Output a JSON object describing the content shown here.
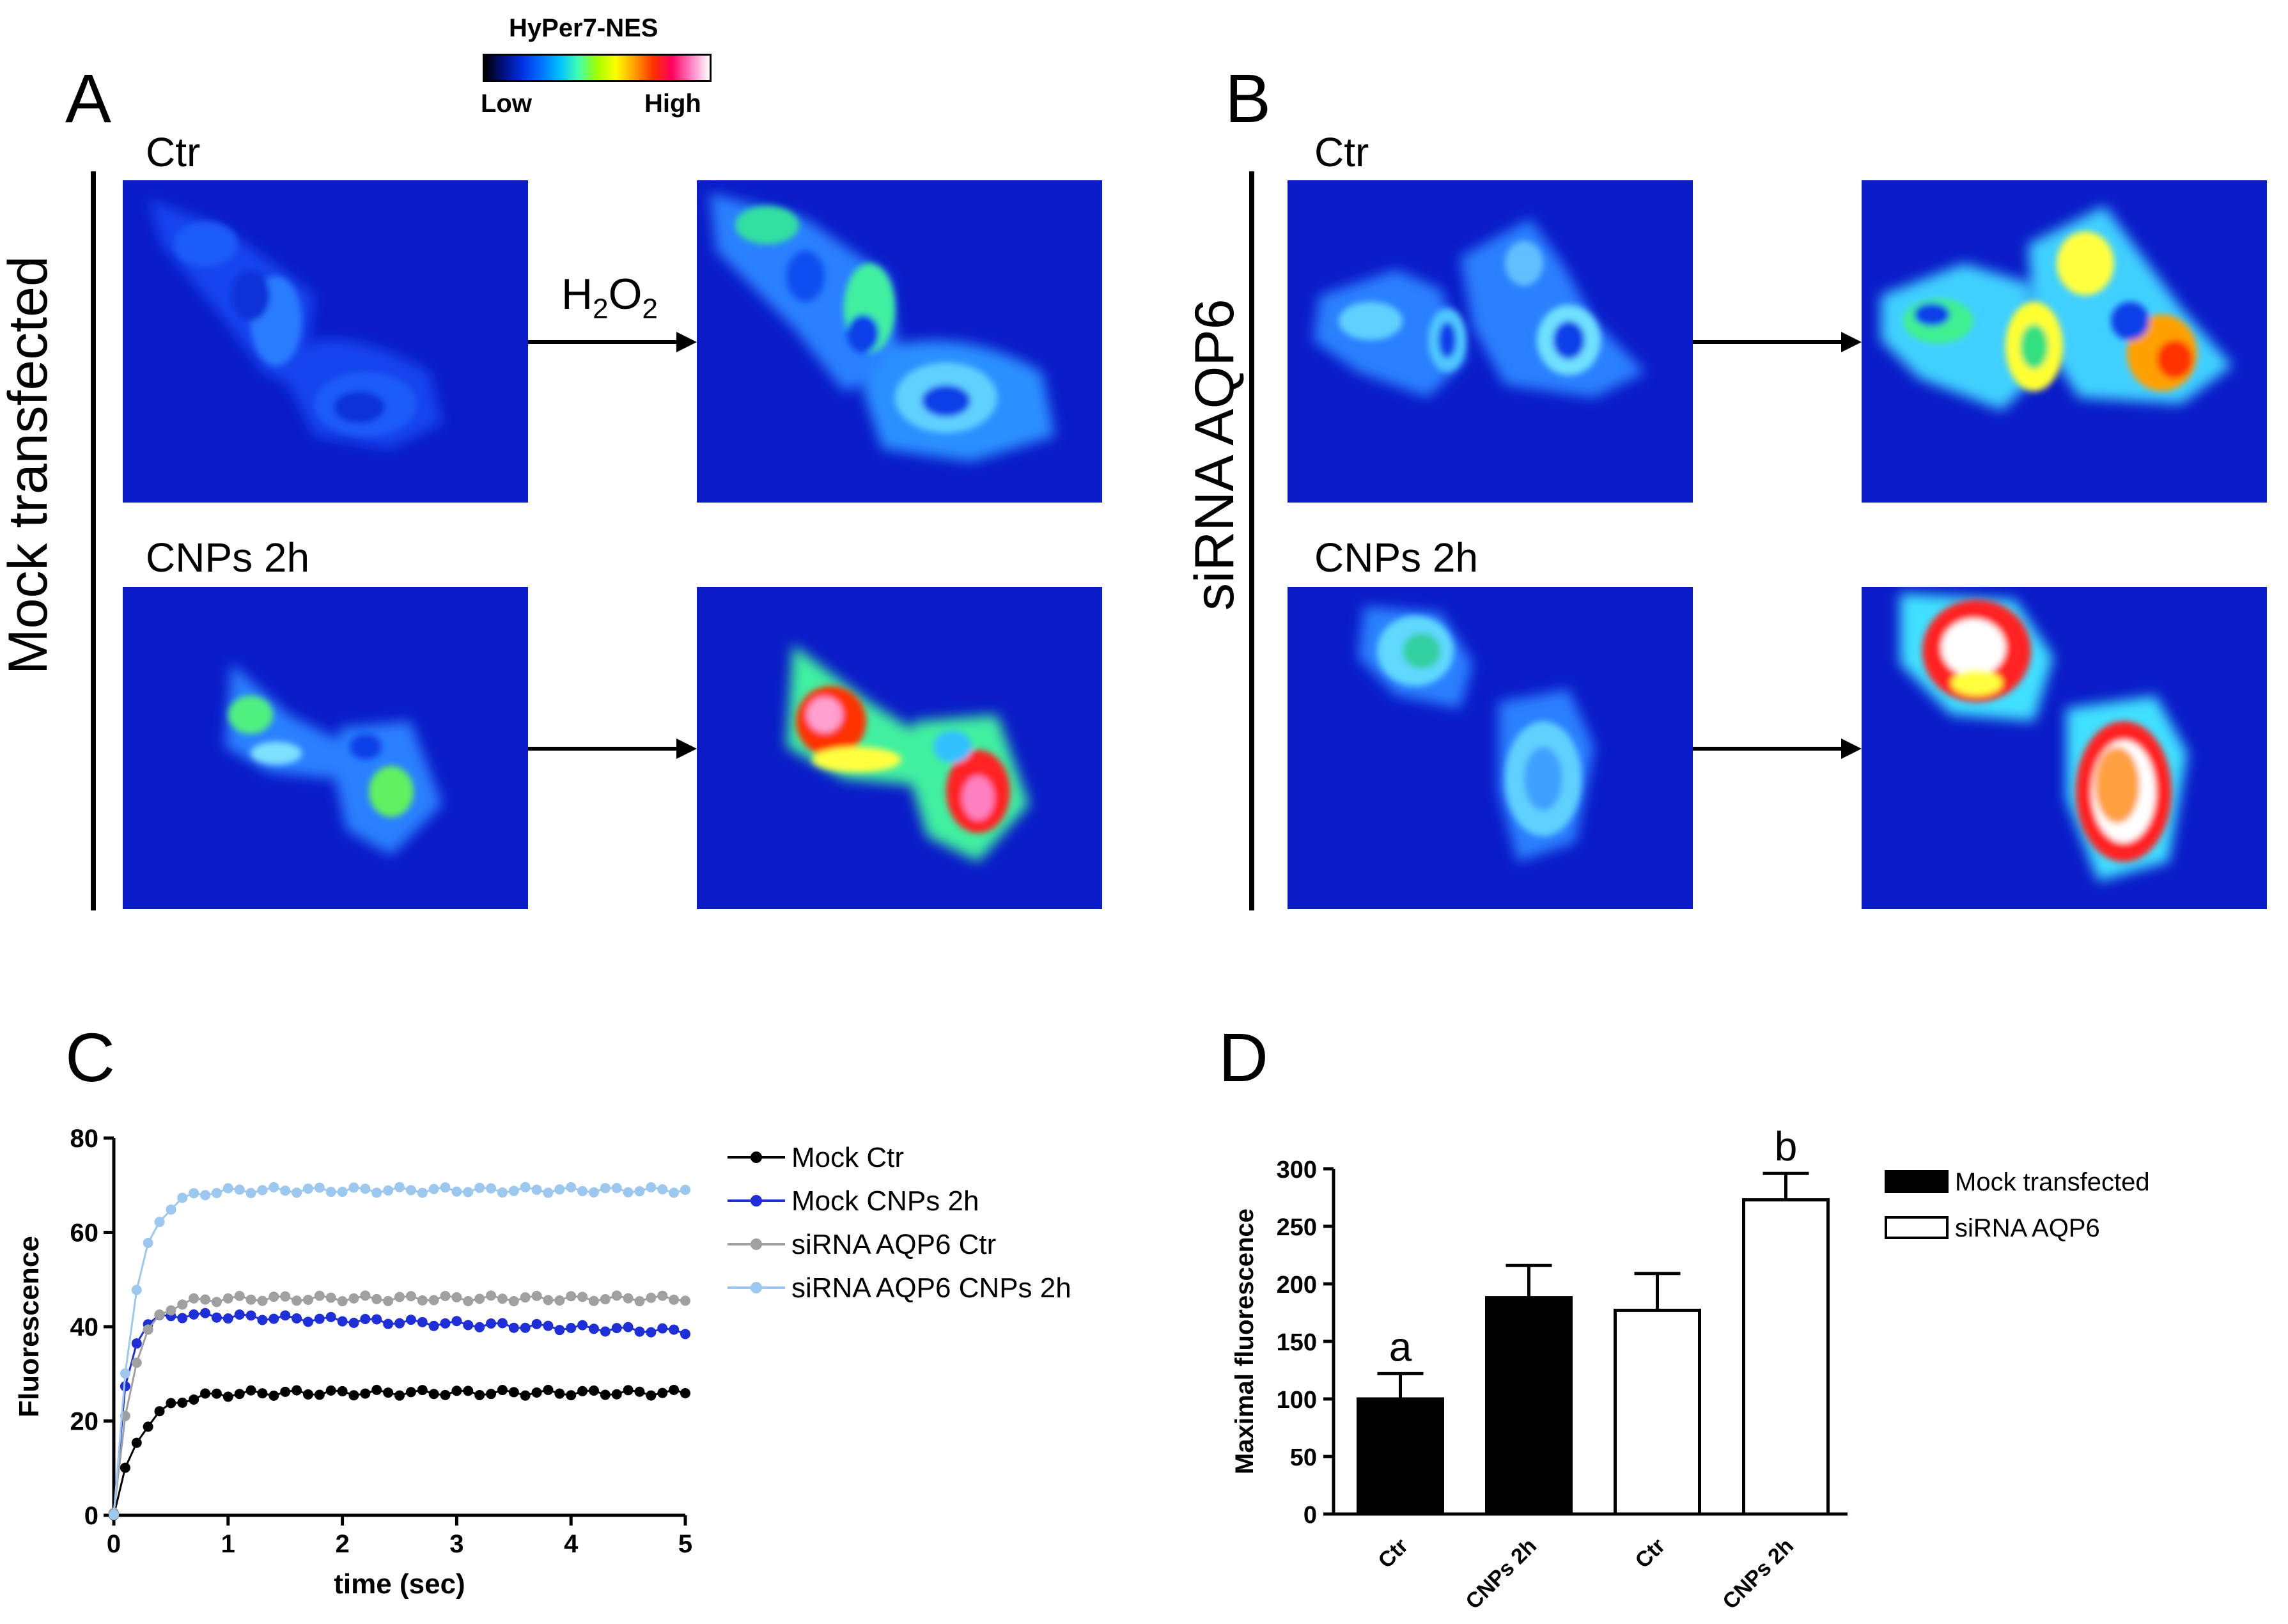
{
  "colorbar": {
    "title": "HyPer7-NES",
    "low_label": "Low",
    "high_label": "High",
    "colors": [
      "#000000",
      "#001080",
      "#0030e0",
      "#0070ff",
      "#00c0ff",
      "#40ffb0",
      "#a0ff00",
      "#ffff00",
      "#ffa000",
      "#ff3000",
      "#ff0060",
      "#ff80c0",
      "#ffffff"
    ]
  },
  "panelA": {
    "letter": "A",
    "side_label": "Mock transfected",
    "row1_label": "Ctr",
    "row2_label": "CNPs 2h",
    "arrow_label_main": "H",
    "arrow_label_sub1": "2",
    "arrow_label_mid": "O",
    "arrow_label_sub2": "2"
  },
  "panelB": {
    "letter": "B",
    "side_label": "siRNA AQP6",
    "row1_label": "Ctr",
    "row2_label": "CNPs 2h"
  },
  "panelC": {
    "letter": "C"
  },
  "panelD": {
    "letter": "D"
  },
  "chart_data": [
    {
      "type": "line",
      "panel": "C",
      "title": "",
      "xlabel": "time (sec)",
      "ylabel": "Fluorescence",
      "xlim": [
        0,
        5
      ],
      "ylim": [
        0,
        80
      ],
      "xticks": [
        0,
        1,
        2,
        3,
        4,
        5
      ],
      "yticks": [
        0,
        20,
        40,
        60,
        80
      ],
      "legend_position": "right",
      "series": [
        {
          "name": "Mock Ctr",
          "color": "#000000",
          "plateau": 26,
          "tau": 0.22
        },
        {
          "name": "Mock CNPs 2h",
          "color": "#1f2fd8",
          "plateau": 43,
          "tau": 0.1,
          "drift": -1
        },
        {
          "name": "siRNA AQP6 Ctr",
          "color": "#a0a0a0",
          "plateau": 46,
          "tau": 0.16
        },
        {
          "name": "siRNA AQP6 CNPs 2h",
          "color": "#9cc8f0",
          "plateau": 69,
          "tau": 0.17
        }
      ]
    },
    {
      "type": "bar",
      "panel": "D",
      "ylabel": "Maximal fluorescence",
      "ylim": [
        0,
        300
      ],
      "yticks": [
        0,
        50,
        100,
        150,
        200,
        250,
        300
      ],
      "categories": [
        "Ctr",
        "CNPs 2h",
        "Ctr",
        "CNPs 2h"
      ],
      "values": [
        100,
        188,
        177,
        273
      ],
      "errors": [
        22,
        28,
        32,
        23
      ],
      "groups": [
        "Mock transfected",
        "Mock transfected",
        "siRNA AQP6",
        "siRNA AQP6"
      ],
      "annotations": [
        "a",
        "",
        "",
        "b"
      ],
      "legend": [
        "Mock transfected",
        "siRNA AQP6"
      ],
      "legend_position": "top-right"
    }
  ]
}
